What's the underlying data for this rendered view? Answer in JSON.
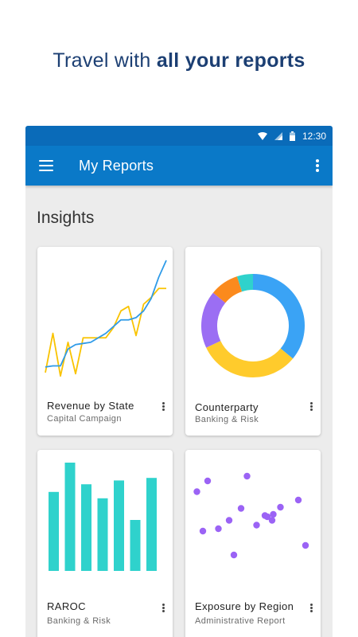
{
  "headline": {
    "prefix": "Travel with ",
    "bold": "all your reports"
  },
  "status_bar": {
    "time": "12:30",
    "icons": [
      "wifi-icon",
      "signal-icon",
      "battery-icon"
    ]
  },
  "app_bar": {
    "title": "My Reports",
    "menu_icon": "hamburger-menu-icon",
    "more_icon": "overflow-menu-icon"
  },
  "section": {
    "title": "Insights"
  },
  "colors": {
    "app_bar": "#0a79c8",
    "status_bar": "#0a6bb9",
    "line_a": "#2f9be8",
    "line_b": "#f9c300",
    "teal": "#2fd2cc",
    "purple": "#9b63f5"
  },
  "cards": [
    {
      "title": "Revenue by State",
      "subtitle": "Capital Campaign"
    },
    {
      "title": "Counterparty",
      "subtitle": "Banking & Risk"
    },
    {
      "title": "RAROC",
      "subtitle": "Banking & Risk"
    },
    {
      "title": "Exposure by Region",
      "subtitle": "Administrative Report"
    }
  ],
  "chart_data": [
    {
      "type": "line",
      "x": [
        0,
        1,
        2,
        3,
        4,
        5,
        6,
        7,
        8,
        9,
        10,
        11,
        12,
        13,
        14,
        15,
        16
      ],
      "series": [
        {
          "values": [
            10,
            11,
            11,
            26,
            30,
            31,
            32,
            36,
            40,
            46,
            52,
            52,
            54,
            60,
            71,
            90,
            105
          ],
          "color": "#2f9be8"
        },
        {
          "values": [
            5,
            40,
            2,
            32,
            4,
            36,
            36,
            36,
            36,
            45,
            60,
            64,
            38,
            66,
            72,
            80,
            80
          ],
          "color": "#f9c300"
        }
      ],
      "ylim": [
        0,
        110
      ]
    },
    {
      "type": "pie",
      "donut": true,
      "values": [
        36,
        32,
        18,
        9,
        5
      ],
      "colors": [
        "#3aa3f5",
        "#ffcb2c",
        "#9b6ef3",
        "#fb8a1d",
        "#2fd2cc"
      ]
    },
    {
      "type": "bar",
      "values": [
        62,
        85,
        68,
        57,
        71,
        40,
        73
      ],
      "ylim": [
        0,
        90
      ],
      "color": "#2fd2cc"
    },
    {
      "type": "scatter",
      "color": "#9b63f5",
      "points": [
        [
          3,
          73
        ],
        [
          12,
          82
        ],
        [
          45,
          86
        ],
        [
          8,
          40
        ],
        [
          21,
          42
        ],
        [
          30,
          49
        ],
        [
          62,
          52
        ],
        [
          66,
          49
        ],
        [
          60,
          53
        ],
        [
          67,
          54
        ],
        [
          88,
          66
        ],
        [
          40,
          59
        ],
        [
          73,
          60
        ],
        [
          94,
          28
        ],
        [
          34,
          20
        ],
        [
          53,
          45
        ]
      ],
      "xlim": [
        0,
        100
      ],
      "ylim": [
        0,
        100
      ]
    }
  ]
}
